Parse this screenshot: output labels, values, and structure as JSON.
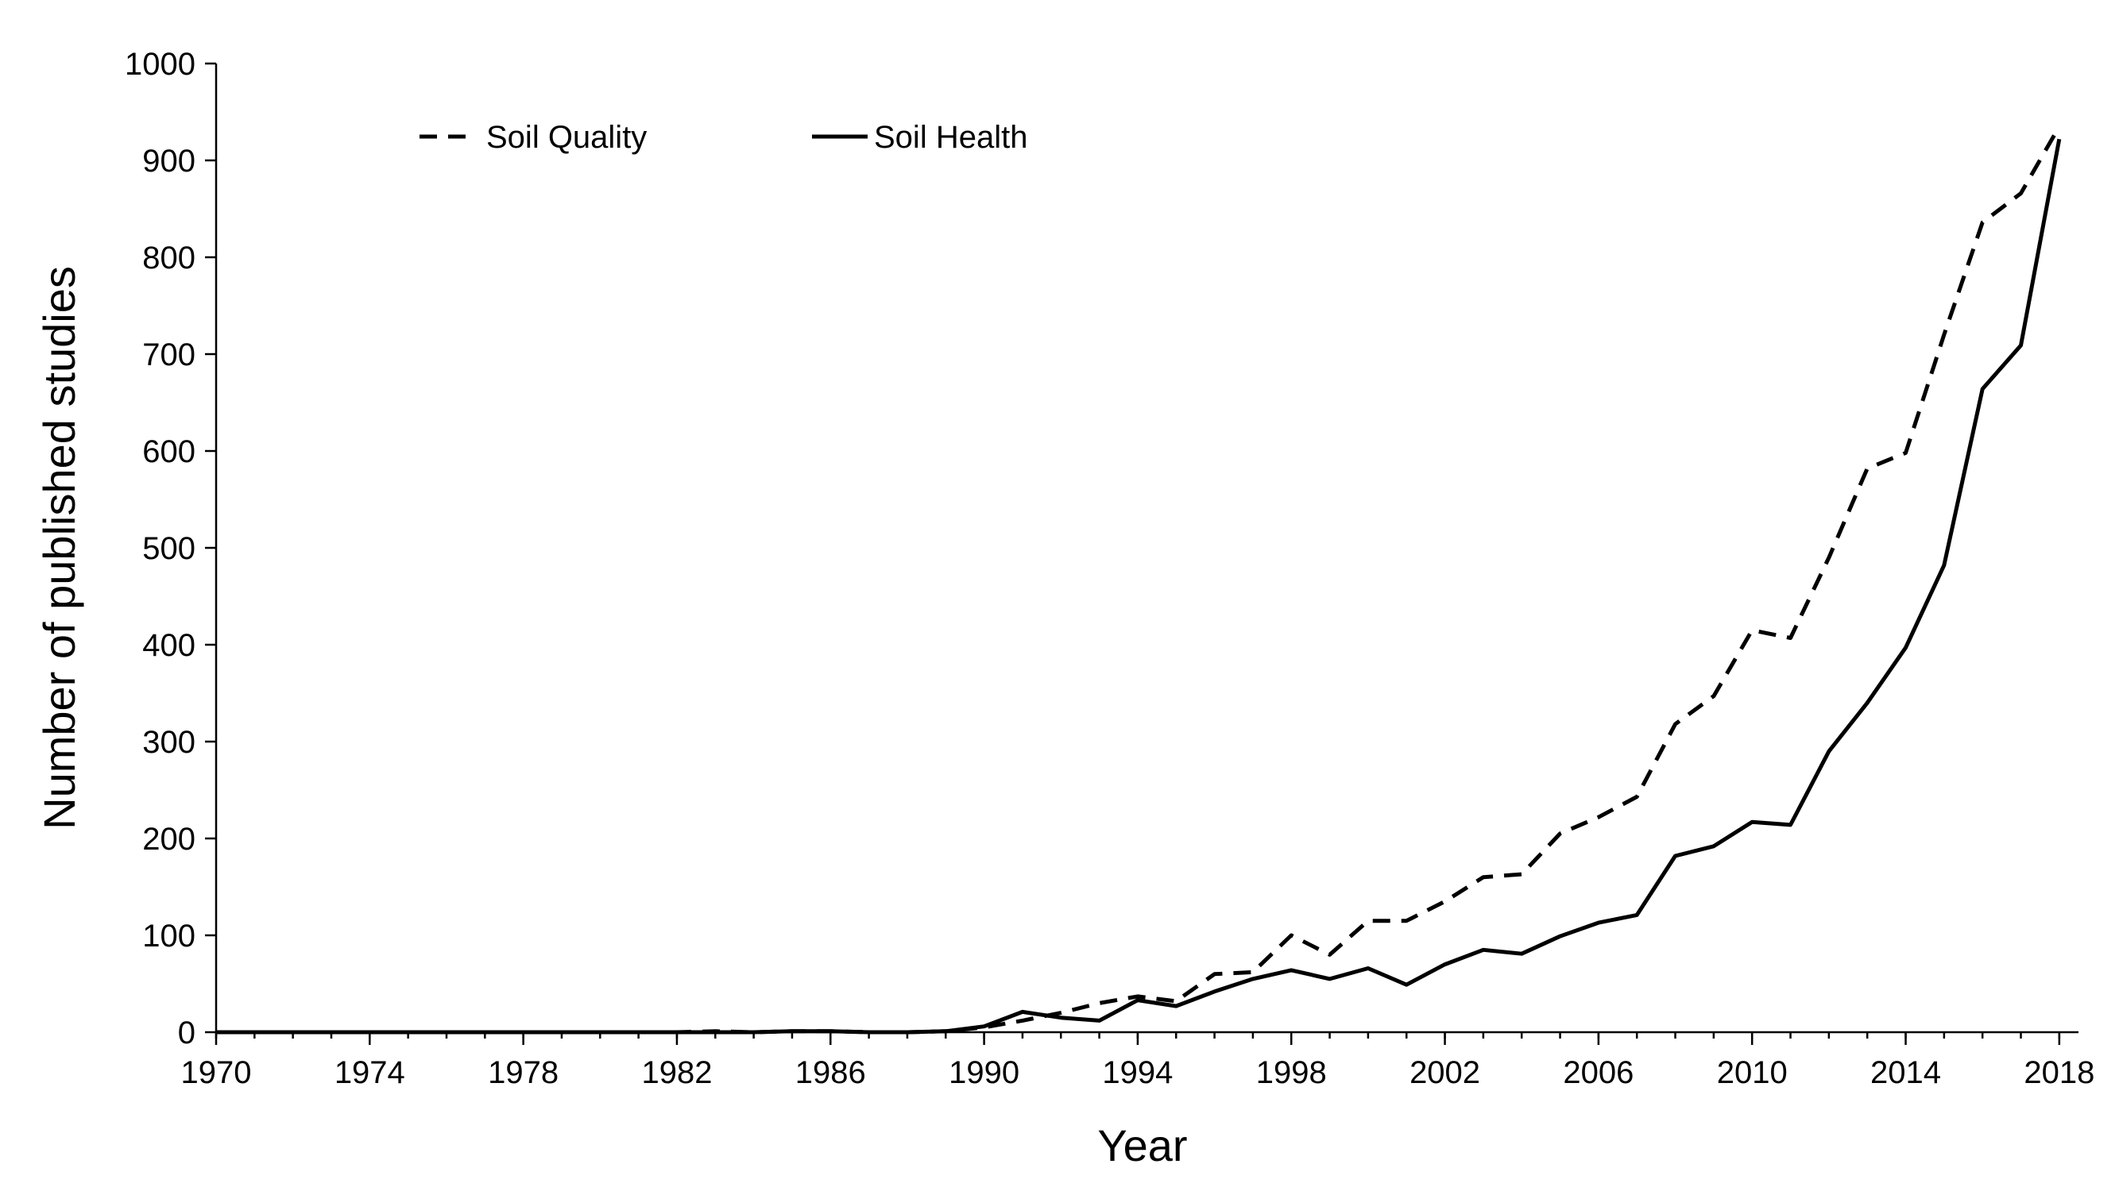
{
  "chart_data": {
    "type": "line",
    "title": "",
    "xlabel": "Year",
    "ylabel": "Number of published studies",
    "xlim": [
      1970,
      2018.5
    ],
    "ylim": [
      0,
      1000
    ],
    "xticks": [
      1970,
      1974,
      1978,
      1982,
      1986,
      1990,
      1994,
      1998,
      2002,
      2006,
      2010,
      2014,
      2018
    ],
    "yticks": [
      0,
      100,
      200,
      300,
      400,
      500,
      600,
      700,
      800,
      900,
      1000
    ],
    "grid": false,
    "legend_position": "top-left",
    "x": [
      1970,
      1971,
      1972,
      1973,
      1974,
      1975,
      1976,
      1977,
      1978,
      1979,
      1980,
      1981,
      1982,
      1983,
      1984,
      1985,
      1986,
      1987,
      1988,
      1989,
      1990,
      1991,
      1992,
      1993,
      1994,
      1995,
      1996,
      1997,
      1998,
      1999,
      2000,
      2001,
      2002,
      2003,
      2004,
      2005,
      2006,
      2007,
      2008,
      2009,
      2010,
      2011,
      2012,
      2013,
      2014,
      2015,
      2016,
      2017,
      2018
    ],
    "series": [
      {
        "name": "Soil Quality",
        "style": "dashed",
        "values": [
          0,
          0,
          0,
          0,
          0,
          0,
          0,
          0,
          0,
          0,
          0,
          0,
          0,
          1,
          0,
          1,
          1,
          0,
          0,
          1,
          5,
          12,
          20,
          30,
          37,
          32,
          60,
          62,
          100,
          80,
          115,
          115,
          135,
          160,
          163,
          205,
          222,
          243,
          318,
          347,
          415,
          407,
          490,
          582,
          598,
          720,
          836,
          866,
          935
        ]
      },
      {
        "name": "Soil Health",
        "style": "solid",
        "values": [
          0,
          0,
          0,
          0,
          0,
          0,
          0,
          0,
          0,
          0,
          0,
          0,
          0,
          0,
          0,
          1,
          1,
          0,
          0,
          1,
          6,
          21,
          15,
          12,
          33,
          27,
          42,
          55,
          64,
          55,
          66,
          49,
          70,
          85,
          81,
          99,
          113,
          121,
          182,
          192,
          217,
          214,
          290,
          340,
          397,
          482,
          664,
          709,
          922
        ]
      }
    ]
  }
}
